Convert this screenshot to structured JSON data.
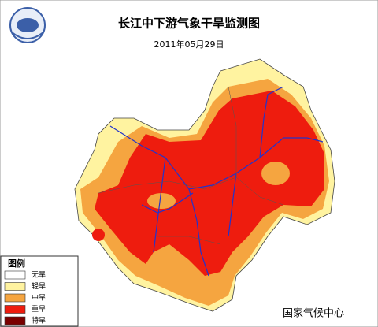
{
  "header": {
    "title": "长江中下游气象干旱监测图",
    "date": "2011年05月29日"
  },
  "legend": {
    "title": "图例",
    "items": [
      {
        "label": "无旱",
        "color": "#ffffff"
      },
      {
        "label": "轻旱",
        "color": "#fff3a0"
      },
      {
        "label": "中旱",
        "color": "#f5a540"
      },
      {
        "label": "重旱",
        "color": "#ee1c0e"
      },
      {
        "label": "特旱",
        "color": "#7a0000"
      }
    ]
  },
  "footer": {
    "source": "国家气候中心"
  }
}
